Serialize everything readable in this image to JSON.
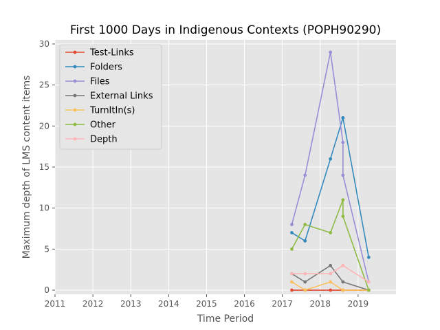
{
  "chart_data": {
    "type": "line",
    "title": "First 1000 Days in Indigenous Contexts (POPH90290)",
    "xlabel": "Time Period",
    "ylabel": "Maximum depth of LMS content items",
    "xlim": [
      2011.0,
      2020.0
    ],
    "ylim": [
      -0.5,
      30.5
    ],
    "x_ticks": [
      2011,
      2012,
      2013,
      2014,
      2015,
      2016,
      2017,
      2018,
      2019
    ],
    "y_ticks": [
      0,
      5,
      10,
      15,
      20,
      25,
      30
    ],
    "grid": true,
    "legend_position": "top-left",
    "x": [
      2017.25,
      2017.6,
      2018.27,
      2018.6,
      2018.6,
      2019.28
    ],
    "series": [
      {
        "name": "Test-Links",
        "color": "#E24A33",
        "values": [
          0,
          0,
          0,
          0,
          0,
          0
        ]
      },
      {
        "name": "Folders",
        "color": "#348ABD",
        "values": [
          7,
          6,
          16,
          21,
          21,
          4
        ]
      },
      {
        "name": "Files",
        "color": "#988ED5",
        "values": [
          8,
          14,
          29,
          18,
          14,
          1
        ]
      },
      {
        "name": "External Links",
        "color": "#777777",
        "values": [
          2,
          1,
          3,
          1,
          1,
          0
        ]
      },
      {
        "name": "TurnItIn(s)",
        "color": "#FBC15E",
        "values": [
          1,
          0,
          1,
          0,
          0,
          0
        ]
      },
      {
        "name": "Other",
        "color": "#8EBA42",
        "values": [
          5,
          8,
          7,
          11,
          9,
          0
        ]
      },
      {
        "name": "Depth",
        "color": "#FFB5B8",
        "values": [
          2,
          2,
          2,
          3,
          3,
          1
        ]
      }
    ]
  }
}
